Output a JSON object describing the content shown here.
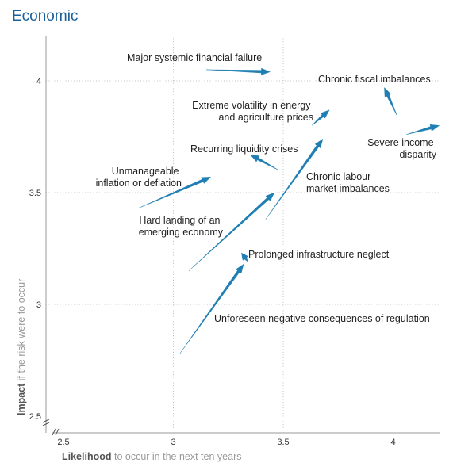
{
  "chart_data": {
    "type": "scatter",
    "title": "Economic",
    "xlabel": {
      "strong": "Likelihood",
      "light": " to occur in the next ten years"
    },
    "ylabel": {
      "strong": "Impact",
      "light": " if the risk were to occur"
    },
    "xlim": [
      2.48,
      4.2
    ],
    "ylim": [
      2.45,
      4.2
    ],
    "xticks": [
      "2.5",
      "3",
      "3.5",
      "4"
    ],
    "yticks": [
      "2.5",
      "3",
      "3.5",
      "4"
    ],
    "grid": true,
    "accent_color": "#1f7fb3",
    "series": [
      {
        "label": [
          "Major systemic financial failure"
        ],
        "from": [
          3.15,
          4.05
        ],
        "to": [
          3.44,
          4.04
        ]
      },
      {
        "label": [
          "Chronic fiscal imbalances"
        ],
        "from": [
          4.02,
          3.84
        ],
        "to": [
          3.96,
          3.97
        ]
      },
      {
        "label": [
          "Extreme volatility in energy",
          "and agriculture prices"
        ],
        "from": [
          3.63,
          3.8
        ],
        "to": [
          3.71,
          3.87
        ]
      },
      {
        "label": [
          "Severe income",
          "disparity"
        ],
        "from": [
          4.06,
          3.76
        ],
        "to": [
          4.21,
          3.8
        ]
      },
      {
        "label": [
          "Recurring liquidity crises"
        ],
        "from": [
          3.48,
          3.6
        ],
        "to": [
          3.35,
          3.67
        ]
      },
      {
        "label": [
          "Chronic labour",
          "market imbalances"
        ],
        "from": [
          3.42,
          3.38
        ],
        "to": [
          3.68,
          3.74
        ]
      },
      {
        "label": [
          "Unmanageable",
          "inflation or deflation"
        ],
        "from": [
          2.84,
          3.43
        ],
        "to": [
          3.17,
          3.57
        ]
      },
      {
        "label": [
          "Hard landing of an",
          "emerging economy"
        ],
        "from": [
          3.07,
          3.15
        ],
        "to": [
          3.46,
          3.5
        ]
      },
      {
        "label": [
          "Prolonged infrastructure neglect"
        ],
        "from": [
          3.34,
          3.19
        ],
        "to": [
          3.31,
          3.23
        ]
      },
      {
        "label": [
          "Unforeseen negative consequences of regulation"
        ],
        "from": [
          3.03,
          2.78
        ],
        "to": [
          3.32,
          3.18
        ]
      }
    ]
  }
}
